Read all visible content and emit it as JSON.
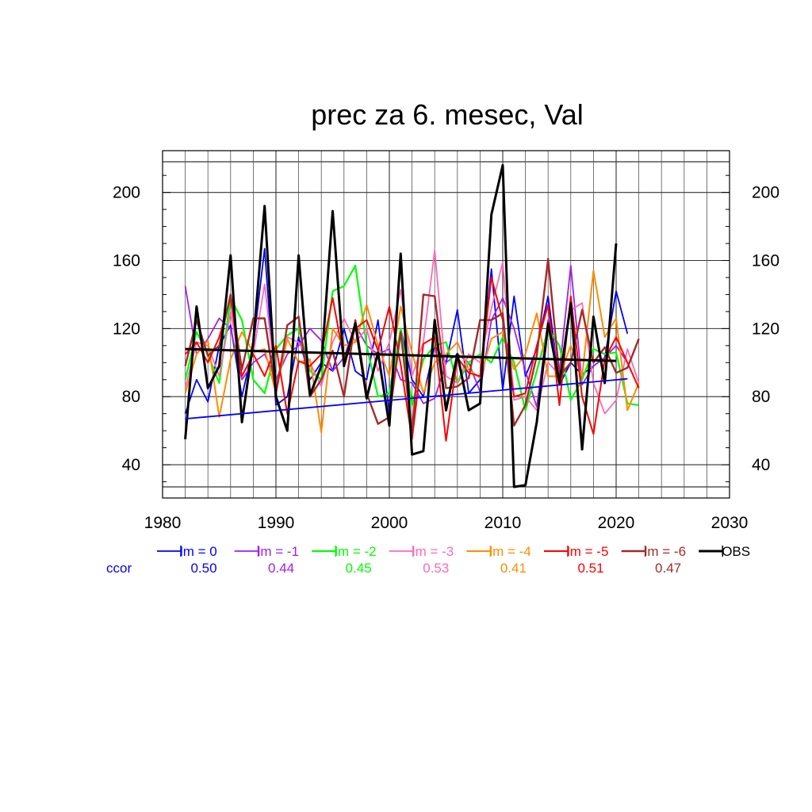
{
  "chart_data": {
    "type": "line",
    "title": "prec za 6. mesec, Val",
    "xlabel": "",
    "ylabel": "",
    "xlim": [
      1980,
      2030
    ],
    "ylim": [
      27,
      218
    ],
    "x_ticks": [
      "1980",
      "1990",
      "2000",
      "2010",
      "2020",
      "2030"
    ],
    "y_ticks": [
      "40",
      "80",
      "120",
      "160",
      "200"
    ],
    "grid": true,
    "legend_position": "bottom",
    "ccor_label": "ccor",
    "x": [
      1982,
      1983,
      1984,
      1985,
      1986,
      1987,
      1988,
      1989,
      1990,
      1991,
      1992,
      1993,
      1994,
      1995,
      1996,
      1997,
      1998,
      1999,
      2000,
      2001,
      2002,
      2003,
      2004,
      2005,
      2006,
      2007,
      2008,
      2009,
      2010,
      2011,
      2012,
      2013,
      2014,
      2015,
      2016,
      2017,
      2018,
      2019,
      2020,
      2021,
      2022
    ],
    "series": [
      {
        "name": "lm = 0",
        "color": "#0000ff",
        "ccor": "0.50",
        "width": 1.8,
        "values": [
          70,
          90,
          77,
          110,
          122,
          80,
          110,
          167,
          75,
          80,
          115,
          90,
          100,
          95,
          120,
          95,
          90,
          125,
          70,
          120,
          90,
          80,
          110,
          100,
          131,
          82,
          90,
          155,
          84,
          139,
          92,
          108,
          139,
          87,
          100,
          93,
          98,
          103,
          142,
          117,
          null
        ]
      },
      {
        "name": "lm = -1",
        "color": "#a020f0",
        "ccor": "0.44",
        "width": 1.8,
        "values": [
          145,
          105,
          114,
          126,
          120,
          90,
          100,
          105,
          90,
          105,
          110,
          120,
          113,
          95,
          103,
          122,
          110,
          105,
          108,
          90,
          88,
          76,
          79,
          100,
          105,
          100,
          83,
          125,
          138,
          120,
          95,
          74,
          125,
          95,
          157,
          87,
          98,
          103,
          110,
          100,
          null
        ]
      },
      {
        "name": "lm = -2",
        "color": "#00ff00",
        "ccor": "0.45",
        "width": 2.2,
        "values": [
          90,
          118,
          105,
          88,
          138,
          125,
          90,
          82,
          108,
          116,
          120,
          95,
          90,
          142,
          145,
          157,
          110,
          80,
          82,
          120,
          75,
          102,
          110,
          112,
          88,
          100,
          105,
          100,
          115,
          100,
          72,
          95,
          120,
          110,
          78,
          90,
          108,
          105,
          106,
          76,
          75
        ]
      },
      {
        "name": "lm = -3",
        "color": "#ff69b4",
        "ccor": "0.53",
        "width": 1.8,
        "values": [
          85,
          112,
          110,
          92,
          130,
          92,
          105,
          146,
          86,
          115,
          112,
          100,
          86,
          112,
          126,
          112,
          120,
          95,
          112,
          143,
          92,
          112,
          166,
          92,
          88,
          105,
          100,
          132,
          159,
          78,
          80,
          72,
          100,
          93,
          131,
          135,
          88,
          70,
          78,
          108,
          88
        ]
      },
      {
        "name": "lm = -4",
        "color": "#ff8c00",
        "ccor": "0.41",
        "width": 2.0,
        "values": [
          82,
          105,
          113,
          68,
          102,
          118,
          106,
          108,
          82,
          114,
          100,
          102,
          59,
          120,
          110,
          112,
          134,
          110,
          92,
          133,
          106,
          82,
          100,
          105,
          112,
          96,
          91,
          114,
          118,
          96,
          105,
          129,
          92,
          92,
          110,
          92,
          154,
          115,
          126,
          72,
          88
        ]
      },
      {
        "name": "lm = -5",
        "color": "#ff0000",
        "ccor": "0.51",
        "width": 2.0,
        "values": [
          105,
          112,
          100,
          115,
          138,
          92,
          105,
          92,
          110,
          70,
          101,
          98,
          105,
          138,
          102,
          120,
          125,
          107,
          133,
          99,
          55,
          111,
          115,
          54,
          103,
          94,
          92,
          150,
          125,
          80,
          82,
          110,
          134,
          75,
          139,
          80,
          58,
          102,
          115,
          100,
          85
        ]
      },
      {
        "name": "lm = -6",
        "color": "#a52a2a",
        "ccor": "0.47",
        "width": 2.4,
        "values": [
          98,
          125,
          104,
          110,
          140,
          96,
          126,
          126,
          82,
          122,
          127,
          80,
          90,
          107,
          80,
          125,
          82,
          64,
          68,
          118,
          58,
          140,
          139,
          85,
          86,
          91,
          125,
          125,
          129,
          63,
          75,
          104,
          161,
          92,
          100,
          131,
          100,
          109,
          94,
          97,
          114
        ]
      },
      {
        "name": "OBS",
        "color": "#000000",
        "ccor": "",
        "width": 3.0,
        "values": [
          55,
          133,
          85,
          98,
          163,
          65,
          112,
          192,
          80,
          60,
          163,
          81,
          98,
          189,
          98,
          123,
          79,
          106,
          63,
          164,
          46,
          48,
          125,
          72,
          105,
          72,
          76,
          187,
          216,
          27,
          28,
          65,
          123,
          88,
          135,
          49,
          127,
          88,
          170,
          null,
          null
        ]
      }
    ],
    "trend_lines": [
      {
        "color": "#0000ff",
        "width": 1.8,
        "x": [
          1982,
          2021
        ],
        "values": [
          67,
          90.5
        ]
      },
      {
        "color": "#000000",
        "width": 3.0,
        "x": [
          1982,
          2020
        ],
        "values": [
          108,
          101
        ]
      }
    ]
  }
}
